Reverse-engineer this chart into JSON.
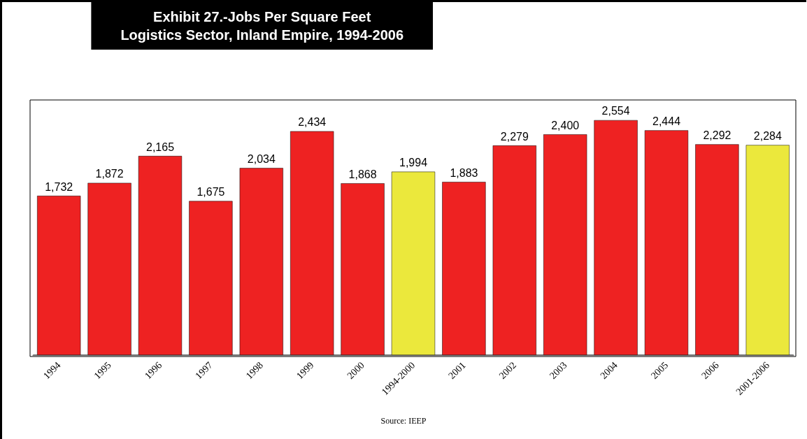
{
  "chart_data": {
    "type": "bar",
    "title": "Exhibit 27.-Jobs Per Square Feet\nLogistics Sector, Inland Empire, 1994-2006",
    "categories": [
      "1994",
      "1995",
      "1996",
      "1997",
      "1998",
      "1999",
      "2000",
      "1994-2000",
      "2001",
      "2002",
      "2003",
      "2004",
      "2005",
      "2006",
      "2001-2006"
    ],
    "values": [
      1732,
      1872,
      2165,
      1675,
      2034,
      2434,
      1868,
      1994,
      1883,
      2279,
      2400,
      2554,
      2444,
      2292,
      2284
    ],
    "value_labels": [
      "1,732",
      "1,872",
      "2,165",
      "1,675",
      "2,034",
      "2,434",
      "1,868",
      "1,994",
      "1,883",
      "2,279",
      "2,400",
      "2,554",
      "2,444",
      "2,292",
      "2,284"
    ],
    "colors": [
      "#ee2222",
      "#ee2222",
      "#ee2222",
      "#ee2222",
      "#ee2222",
      "#ee2222",
      "#ee2222",
      "#ebe83c",
      "#ee2222",
      "#ee2222",
      "#ee2222",
      "#ee2222",
      "#ee2222",
      "#ee2222",
      "#ebe83c"
    ],
    "annotations": [
      "Source: IEEP"
    ]
  }
}
